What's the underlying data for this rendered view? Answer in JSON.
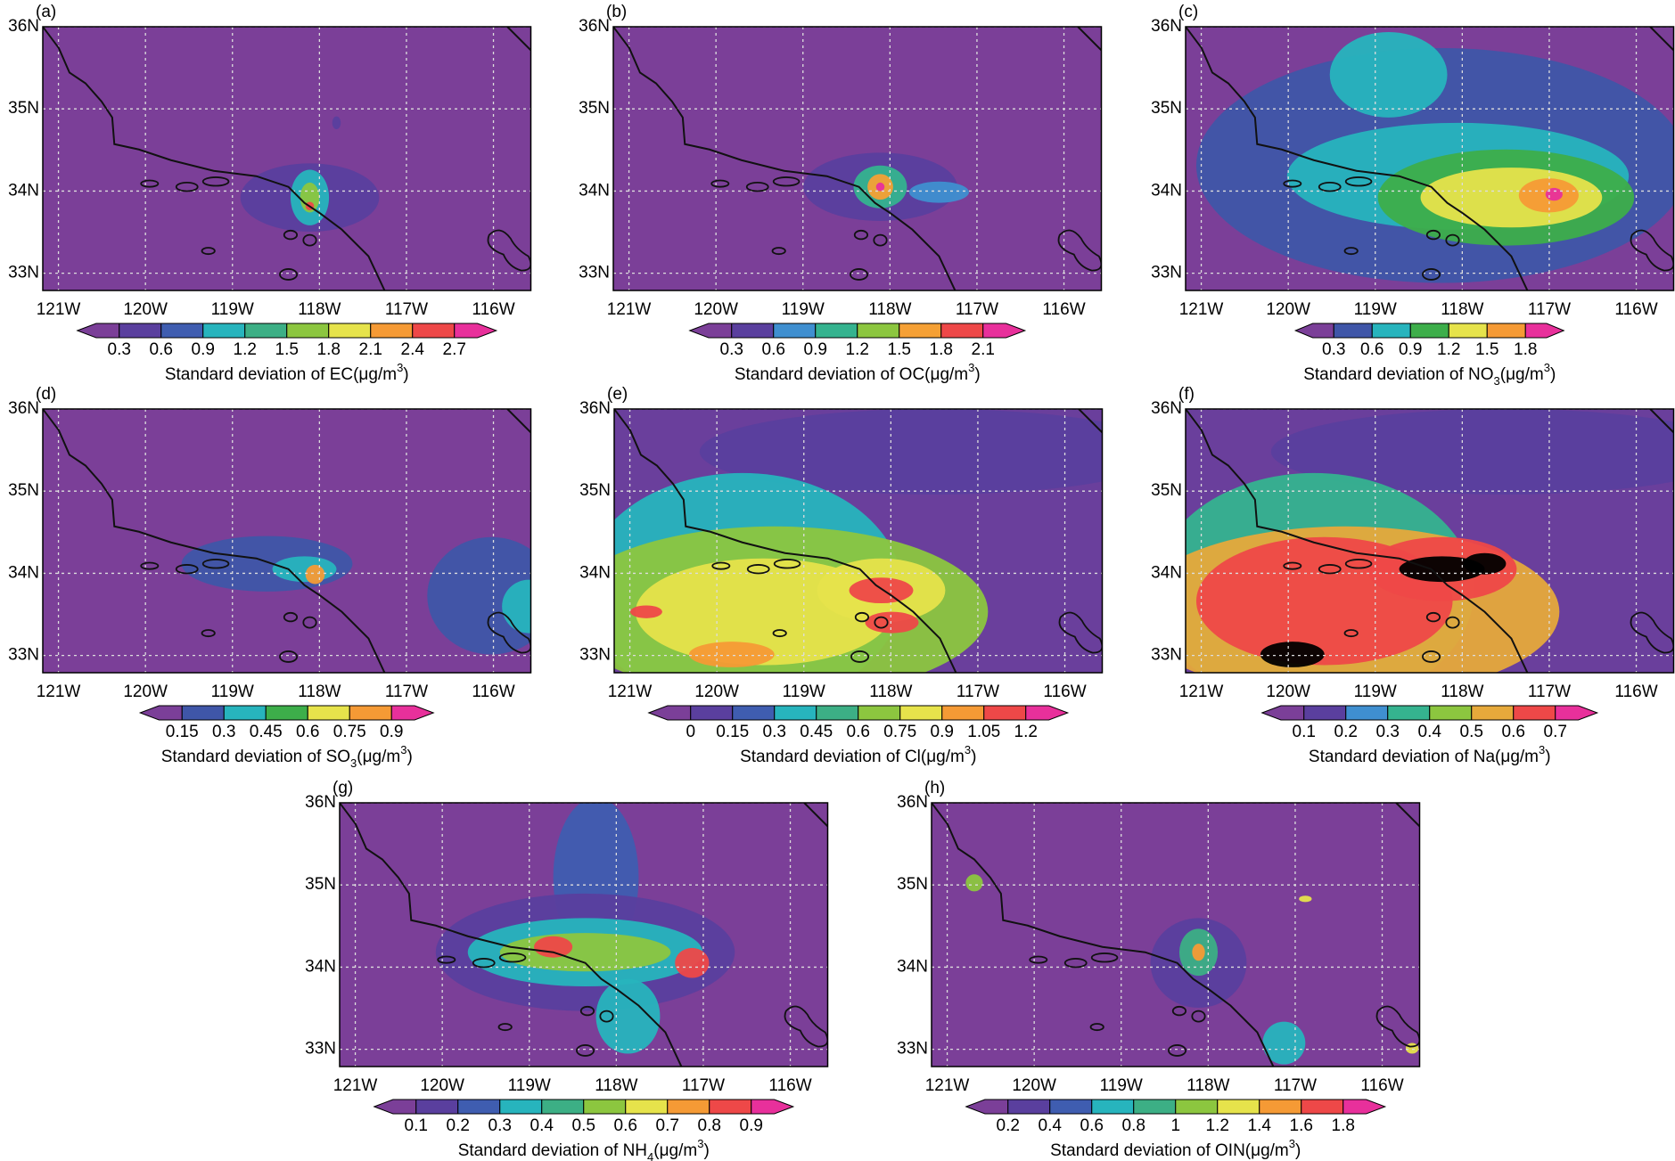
{
  "xlim": [
    -121.18,
    -115.57
  ],
  "ylim": [
    32.79,
    36
  ],
  "lat_ticks": [
    {
      "value": 36,
      "label": "36N"
    },
    {
      "value": 35,
      "label": "35N"
    },
    {
      "value": 34,
      "label": "34N"
    },
    {
      "value": 33,
      "label": "33N"
    }
  ],
  "lon_ticks": [
    {
      "value": -121,
      "label": "121W"
    },
    {
      "value": -120,
      "label": "120W"
    },
    {
      "value": -119,
      "label": "119W"
    },
    {
      "value": -118,
      "label": "118W"
    },
    {
      "value": -117,
      "label": "117W"
    },
    {
      "value": -116,
      "label": "116W"
    }
  ],
  "panels": [
    {
      "label": "(a)",
      "background": "#7b3f98",
      "colorbar": {
        "ticks": [
          0.3,
          0.6,
          0.9,
          1.2,
          1.5,
          1.8,
          2.1,
          2.4,
          2.7
        ],
        "colors": [
          "#7b3f98",
          "#5a3f9e",
          "#3f5db0",
          "#27b4bd",
          "#3caf85",
          "#8cc63f",
          "#e6e34b",
          "#f59a35",
          "#ee4848",
          "#e8309b"
        ],
        "title": [
          {
            "text": "Standard deviation of EC(μg/m"
          },
          {
            "text": "3",
            "shift": "super"
          },
          {
            "text": ")"
          }
        ]
      }
    },
    {
      "label": "(b)",
      "background": "#7b3f98",
      "colorbar": {
        "ticks": [
          0.3,
          0.6,
          0.9,
          1.2,
          1.5,
          1.8,
          2.1
        ],
        "colors": [
          "#7b3f98",
          "#5a3f9e",
          "#3f8fd0",
          "#35b38f",
          "#8cc63f",
          "#f5a035",
          "#ee4848",
          "#e8309b"
        ],
        "title": [
          {
            "text": "Standard deviation of OC(μg/m"
          },
          {
            "text": "3",
            "shift": "super"
          },
          {
            "text": ")"
          }
        ]
      }
    },
    {
      "label": "(c)",
      "background": "#7b3f98",
      "colorbar": {
        "ticks": [
          0.3,
          0.6,
          0.9,
          1.2,
          1.5,
          1.8
        ],
        "colors": [
          "#7b3f98",
          "#3f56a8",
          "#27b4bd",
          "#3dae4a",
          "#e6e34b",
          "#f59a35",
          "#e8309b"
        ],
        "title": [
          {
            "text": "Standard deviation of NO"
          },
          {
            "text": "3",
            "shift": "sub"
          },
          {
            "text": "(μg/m"
          },
          {
            "text": "3",
            "shift": "super"
          },
          {
            "text": ")"
          }
        ]
      }
    },
    {
      "label": "(d)",
      "background": "#7b3f98",
      "colorbar": {
        "ticks": [
          0.15,
          0.3,
          0.45,
          0.6,
          0.75,
          0.9
        ],
        "colors": [
          "#7b3f98",
          "#3f56a8",
          "#27b4bd",
          "#3dae4a",
          "#e6e34b",
          "#f59a35",
          "#e8309b"
        ],
        "title": [
          {
            "text": "Standard deviation of SO"
          },
          {
            "text": "3",
            "shift": "sub"
          },
          {
            "text": "(μg/m"
          },
          {
            "text": "3",
            "shift": "super"
          },
          {
            "text": ")"
          }
        ]
      }
    },
    {
      "label": "(e)",
      "background": "#6a3f9c",
      "colorbar": {
        "ticks": [
          0,
          0.15,
          0.3,
          0.45,
          0.6,
          0.75,
          0.9,
          1.05,
          1.2
        ],
        "colors": [
          "#7b3f98",
          "#5a3f9e",
          "#3f5db0",
          "#27b4bd",
          "#3caf85",
          "#8cc63f",
          "#e6e34b",
          "#f59a35",
          "#ee4848",
          "#e8309b"
        ],
        "title": [
          {
            "text": "Standard deviation of Cl(μg/m"
          },
          {
            "text": "3",
            "shift": "super"
          },
          {
            "text": ")"
          }
        ]
      }
    },
    {
      "label": "(f)",
      "background": "#6a3f9c",
      "colorbar": {
        "ticks": [
          0.1,
          0.2,
          0.3,
          0.4,
          0.5,
          0.6,
          0.7
        ],
        "colors": [
          "#7b3f98",
          "#5a3f9e",
          "#3f8fd0",
          "#35b38f",
          "#8cc63f",
          "#e6a93b",
          "#ee4848",
          "#e8309b"
        ],
        "title": [
          {
            "text": "Standard deviation of Na(μg/m"
          },
          {
            "text": "3",
            "shift": "super"
          },
          {
            "text": ")"
          }
        ]
      }
    },
    {
      "label": "(g)",
      "background": "#7b3f98",
      "colorbar": {
        "ticks": [
          0.1,
          0.2,
          0.3,
          0.4,
          0.5,
          0.6,
          0.7,
          0.8,
          0.9
        ],
        "colors": [
          "#7b3f98",
          "#5a3f9e",
          "#3f5db0",
          "#27b4bd",
          "#3caf85",
          "#8cc63f",
          "#e6e34b",
          "#f59a35",
          "#ee4848",
          "#e8309b"
        ],
        "title": [
          {
            "text": "Standard deviation of NH"
          },
          {
            "text": "4",
            "shift": "sub"
          },
          {
            "text": "(μg/m"
          },
          {
            "text": "3",
            "shift": "super"
          },
          {
            "text": ")"
          }
        ]
      }
    },
    {
      "label": "(h)",
      "background": "#7b3f98",
      "colorbar": {
        "ticks": [
          0.2,
          0.4,
          0.6,
          0.8,
          1,
          1.2,
          1.4,
          1.6,
          1.8
        ],
        "colors": [
          "#7b3f98",
          "#5a3f9e",
          "#3f5db0",
          "#27b4bd",
          "#3caf85",
          "#8cc63f",
          "#e6e34b",
          "#f59a35",
          "#ee4848",
          "#e8309b"
        ],
        "title": [
          {
            "text": "Standard deviation of OIN(μg/m"
          },
          {
            "text": "3",
            "shift": "super"
          },
          {
            "text": ")"
          }
        ]
      }
    }
  ]
}
